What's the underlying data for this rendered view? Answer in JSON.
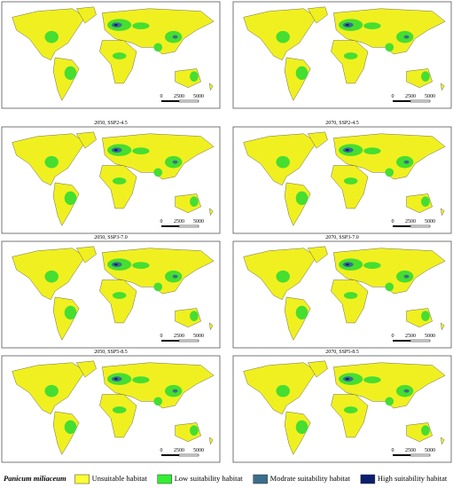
{
  "panels": [
    {},
    {},
    {
      "label": "2050, SSP2-4.5"
    },
    {
      "label": "2070, SSP2-4.5"
    },
    {
      "label": "2050, SSP3-7.0"
    },
    {
      "label": "2070, SSP3-7.0"
    },
    {
      "label": "2050, SSP5-8.5"
    },
    {
      "label": "2070, SSP5-8.5"
    }
  ],
  "scale_bar": [
    "0",
    "2500",
    "5000"
  ],
  "legend": {
    "title": "Panicum miliaceum",
    "items": [
      {
        "label": "Unsuitable habitat",
        "color": "#ffff33"
      },
      {
        "label": "Low suitability habitat",
        "color": "#33ee33"
      },
      {
        "label": "Modrate suitability habitat",
        "color": "#3a6e8c"
      },
      {
        "label": "High suitability habitat",
        "color": "#0a1f6e"
      }
    ]
  }
}
